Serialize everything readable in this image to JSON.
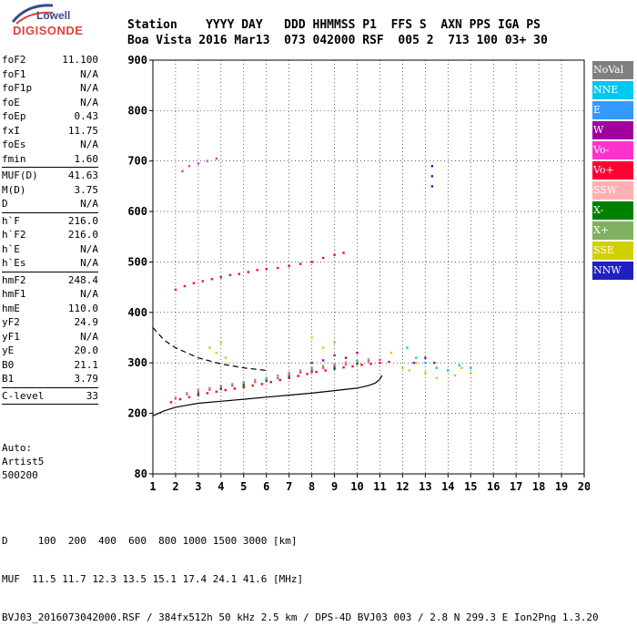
{
  "logo": {
    "line1": "Lowell",
    "line2": "DIGISONDE"
  },
  "header": {
    "row1": "Station    YYYY DAY   DDD HHMMSS P1  FFS S  AXN PPS IGA PS",
    "row2": "Boa Vista 2016 Mar13  073 042000 RSF  005 2  713 100 03+ 30"
  },
  "params": [
    [
      {
        "k": "foF2",
        "v": "11.100"
      },
      {
        "k": "foF1",
        "v": "N/A"
      },
      {
        "k": "foF1p",
        "v": "N/A"
      },
      {
        "k": "foE",
        "v": "N/A"
      },
      {
        "k": "foEp",
        "v": "0.43"
      },
      {
        "k": "fxI",
        "v": "11.75"
      },
      {
        "k": "foEs",
        "v": "N/A"
      },
      {
        "k": "fmin",
        "v": "1.60"
      }
    ],
    [
      {
        "k": "MUF(D)",
        "v": "41.63"
      },
      {
        "k": "M(D)",
        "v": "3.75"
      },
      {
        "k": "D",
        "v": "N/A"
      }
    ],
    [
      {
        "k": "h`F",
        "v": "216.0"
      },
      {
        "k": "h`F2",
        "v": "216.0"
      },
      {
        "k": "h`E",
        "v": "N/A"
      },
      {
        "k": "h`Es",
        "v": "N/A"
      }
    ],
    [
      {
        "k": "hmF2",
        "v": "248.4"
      },
      {
        "k": "hmF1",
        "v": "N/A"
      },
      {
        "k": "hmE",
        "v": "110.0"
      },
      {
        "k": "yF2",
        "v": "24.9"
      },
      {
        "k": "yF1",
        "v": "N/A"
      },
      {
        "k": "yE",
        "v": "20.0"
      },
      {
        "k": "B0",
        "v": "21.1"
      },
      {
        "k": "B1",
        "v": "3.79"
      }
    ],
    [
      {
        "k": "C-level",
        "v": "33"
      }
    ]
  ],
  "auto": {
    "line1": "Auto:",
    "line2": "Artist5",
    "line3": "500200"
  },
  "legend": [
    {
      "label": "NoVal",
      "color": "#808080"
    },
    {
      "label": "NNE",
      "color": "#00c8f0"
    },
    {
      "label": "E",
      "color": "#3399ff"
    },
    {
      "label": "W",
      "color": "#a000a0"
    },
    {
      "label": "Vo-",
      "color": "#ff33cc"
    },
    {
      "label": "Vo+",
      "color": "#ff0033"
    },
    {
      "label": "SSW",
      "color": "#ffb0b0"
    },
    {
      "label": "X-",
      "color": "#008000"
    },
    {
      "label": "X+",
      "color": "#80b060"
    },
    {
      "label": "SSE",
      "color": "#d0d000"
    },
    {
      "label": "NNW",
      "color": "#2020c0"
    }
  ],
  "footer": {
    "line1": "D     100  200  400  600  800 1000 1500 3000 [km]",
    "line2": "MUF  11.5 11.7 12.3 13.5 15.1 17.4 24.1 41.6 [MHz]",
    "line3": "BVJ03_2016073042000.RSF / 384fx512h 50 kHz 2.5 km / DPS-4D BVJ03 003 / 2.8 N 299.3 E Ion2Png 1.3.20"
  },
  "chart_data": {
    "type": "scatter",
    "xlim": [
      1,
      20
    ],
    "ylim": [
      80,
      900
    ],
    "xticks": [
      1,
      2,
      3,
      4,
      5,
      6,
      7,
      8,
      9,
      10,
      11,
      12,
      13,
      14,
      15,
      16,
      17,
      18,
      19,
      20
    ],
    "yticks": [
      80,
      200,
      300,
      400,
      500,
      600,
      700,
      800,
      900
    ],
    "grid": true,
    "series": [
      {
        "name": "Vo+",
        "x": [
          1.8,
          2.2,
          2.6,
          3.0,
          3.4,
          3.8,
          4.2,
          4.6,
          5.0,
          5.4,
          5.8,
          6.2,
          6.6,
          7.0,
          7.4,
          7.8,
          8.2,
          8.6,
          9.0,
          9.4,
          9.8,
          10.2,
          10.6,
          11.0,
          11.4
        ],
        "y": [
          222,
          228,
          232,
          236,
          240,
          243,
          246,
          249,
          252,
          255,
          258,
          262,
          266,
          270,
          274,
          278,
          282,
          285,
          288,
          291,
          293,
          296,
          298,
          300,
          302
        ]
      },
      {
        "name": "Vo-",
        "x": [
          2.0,
          2.5,
          3.0,
          3.5,
          4.0,
          4.5,
          5.0,
          5.5,
          6.0,
          6.5,
          7.0,
          7.5,
          8.0,
          8.5,
          9.0,
          9.5,
          10.0,
          10.5,
          11.0
        ],
        "y": [
          230,
          238,
          242,
          247,
          251,
          255,
          258,
          262,
          266,
          270,
          276,
          281,
          286,
          290,
          294,
          297,
          300,
          303,
          306
        ]
      },
      {
        "name": "X+",
        "x": [
          2.5,
          3.0,
          3.5,
          4.0,
          4.5,
          5.0,
          5.5,
          6.0,
          6.5,
          7.0,
          7.5,
          8.0,
          8.5,
          9.0,
          9.5,
          10.0,
          10.5
        ],
        "y": [
          240,
          246,
          250,
          254,
          258,
          262,
          266,
          270,
          275,
          280,
          285,
          290,
          294,
          298,
          301,
          304,
          307
        ]
      },
      {
        "name": "X-",
        "x": [
          3.0,
          4.0,
          5.0,
          6.0,
          7.0,
          8.0,
          9.0,
          10.0
        ],
        "y": [
          238,
          248,
          256,
          264,
          272,
          282,
          290,
          298
        ]
      },
      {
        "name": "SSE",
        "x": [
          3.5,
          3.8,
          4.0,
          4.2,
          8.0,
          8.5,
          9.0,
          11.5,
          12.0,
          12.3,
          12.6,
          13.0,
          13.5,
          14.0,
          14.3,
          14.6,
          15.0
        ],
        "y": [
          330,
          320,
          340,
          310,
          350,
          330,
          340,
          320,
          290,
          285,
          300,
          280,
          270,
          285,
          275,
          290,
          280
        ]
      },
      {
        "name": "NNE",
        "x": [
          12.2,
          12.6,
          13.0,
          13.5,
          14.0,
          14.5,
          15.0
        ],
        "y": [
          330,
          310,
          300,
          290,
          285,
          295,
          290
        ]
      },
      {
        "name": "W",
        "x": [
          8.0,
          8.5,
          9.0,
          9.5,
          10.0,
          12.5,
          13.0,
          13.4
        ],
        "y": [
          300,
          305,
          315,
          310,
          320,
          300,
          310,
          300
        ]
      },
      {
        "name": "NNW",
        "x": [
          13.3,
          13.3,
          13.3
        ],
        "y": [
          690,
          670,
          650
        ]
      },
      {
        "name": "Vo+ (2F)",
        "x": [
          2.0,
          2.4,
          2.8,
          3.2,
          3.6,
          4.0,
          4.4,
          4.8,
          5.2,
          5.6,
          6.0,
          6.5,
          7.0,
          7.5,
          8.0,
          8.5,
          9.0,
          9.4
        ],
        "y": [
          445,
          452,
          458,
          462,
          466,
          470,
          474,
          476,
          480,
          484,
          486,
          488,
          492,
          496,
          500,
          508,
          514,
          518
        ]
      },
      {
        "name": "Vo- (3F)",
        "x": [
          2.3,
          2.6,
          3.0,
          3.4,
          3.8
        ],
        "y": [
          680,
          690,
          695,
          700,
          705
        ]
      }
    ],
    "curves": [
      {
        "name": "profile",
        "x": [
          1,
          1.5,
          2,
          2.5,
          3,
          4,
          5,
          6,
          7,
          8,
          9,
          10,
          10.5,
          10.8,
          11.0,
          11.1
        ],
        "y": [
          195,
          205,
          212,
          216,
          220,
          224,
          228,
          232,
          236,
          240,
          245,
          250,
          255,
          260,
          268,
          275
        ]
      },
      {
        "name": "muf",
        "x": [
          1,
          1.5,
          2,
          3,
          4,
          5,
          6
        ],
        "y": [
          370,
          345,
          330,
          310,
          298,
          290,
          285
        ]
      }
    ]
  }
}
